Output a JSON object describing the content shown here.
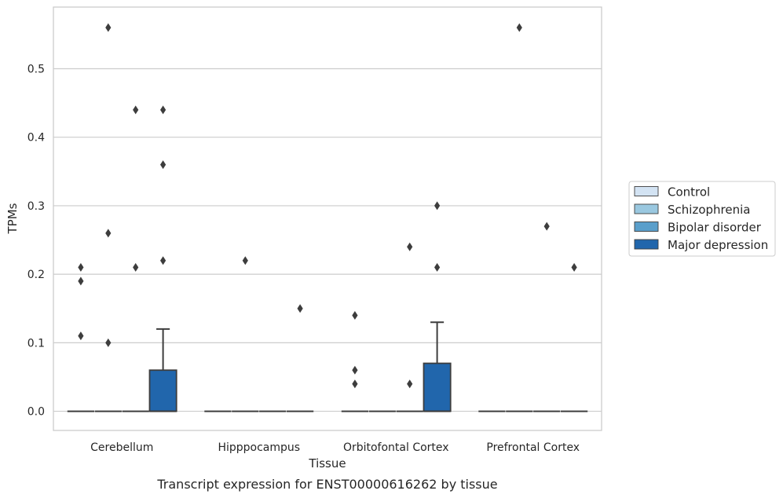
{
  "chart_data": {
    "type": "box",
    "xlabel": "Tissue",
    "ylabel": "TPMs",
    "caption": "Transcript expression for ENST00000616262 by tissue",
    "categories": [
      "Cerebellum",
      "Hipppocampus",
      "Orbitofontal Cortex",
      "Prefrontal Cortex"
    ],
    "ylim": [
      -0.028,
      0.59
    ],
    "yticks": [
      0.0,
      0.1,
      0.2,
      0.3,
      0.4,
      0.5
    ],
    "ytick_labels": [
      "0.0",
      "0.1",
      "0.2",
      "0.3",
      "0.4",
      "0.5"
    ],
    "grid": true,
    "legend_position": "right",
    "series": [
      {
        "name": "Control",
        "color": "#d3e3f3",
        "boxes": [
          {
            "q1": 0,
            "median": 0,
            "q3": 0,
            "whisker_low": 0,
            "whisker_high": 0,
            "outliers": [
              0.21,
              0.19,
              0.11
            ]
          },
          {
            "q1": 0,
            "median": 0,
            "q3": 0,
            "whisker_low": 0,
            "whisker_high": 0,
            "outliers": []
          },
          {
            "q1": 0,
            "median": 0,
            "q3": 0,
            "whisker_low": 0,
            "whisker_high": 0,
            "outliers": [
              0.14,
              0.06,
              0.04
            ]
          },
          {
            "q1": 0,
            "median": 0,
            "q3": 0,
            "whisker_low": 0,
            "whisker_high": 0,
            "outliers": []
          }
        ]
      },
      {
        "name": "Schizophrenia",
        "color": "#9ac8e0",
        "boxes": [
          {
            "q1": 0,
            "median": 0,
            "q3": 0,
            "whisker_low": 0,
            "whisker_high": 0,
            "outliers": [
              0.56,
              0.26,
              0.1
            ]
          },
          {
            "q1": 0,
            "median": 0,
            "q3": 0,
            "whisker_low": 0,
            "whisker_high": 0,
            "outliers": [
              0.22
            ]
          },
          {
            "q1": 0,
            "median": 0,
            "q3": 0,
            "whisker_low": 0,
            "whisker_high": 0,
            "outliers": []
          },
          {
            "q1": 0,
            "median": 0,
            "q3": 0,
            "whisker_low": 0,
            "whisker_high": 0,
            "outliers": [
              0.56
            ]
          }
        ]
      },
      {
        "name": "Bipolar disorder",
        "color": "#5a9fcb",
        "boxes": [
          {
            "q1": 0,
            "median": 0,
            "q3": 0,
            "whisker_low": 0,
            "whisker_high": 0,
            "outliers": [
              0.44,
              0.21
            ]
          },
          {
            "q1": 0,
            "median": 0,
            "q3": 0,
            "whisker_low": 0,
            "whisker_high": 0,
            "outliers": []
          },
          {
            "q1": 0,
            "median": 0,
            "q3": 0,
            "whisker_low": 0,
            "whisker_high": 0,
            "outliers": [
              0.24,
              0.04
            ]
          },
          {
            "q1": 0,
            "median": 0,
            "q3": 0,
            "whisker_low": 0,
            "whisker_high": 0,
            "outliers": [
              0.27
            ]
          }
        ]
      },
      {
        "name": "Major depression",
        "color": "#2166ac",
        "boxes": [
          {
            "q1": 0,
            "median": 0,
            "q3": 0.06,
            "whisker_low": 0,
            "whisker_high": 0.12,
            "outliers": [
              0.44,
              0.36,
              0.22
            ]
          },
          {
            "q1": 0,
            "median": 0,
            "q3": 0,
            "whisker_low": 0,
            "whisker_high": 0,
            "outliers": [
              0.15
            ]
          },
          {
            "q1": 0,
            "median": 0,
            "q3": 0.07,
            "whisker_low": 0,
            "whisker_high": 0.13,
            "outliers": [
              0.3,
              0.21
            ]
          },
          {
            "q1": 0,
            "median": 0,
            "q3": 0,
            "whisker_low": 0,
            "whisker_high": 0,
            "outliers": [
              0.21
            ]
          }
        ]
      }
    ]
  }
}
